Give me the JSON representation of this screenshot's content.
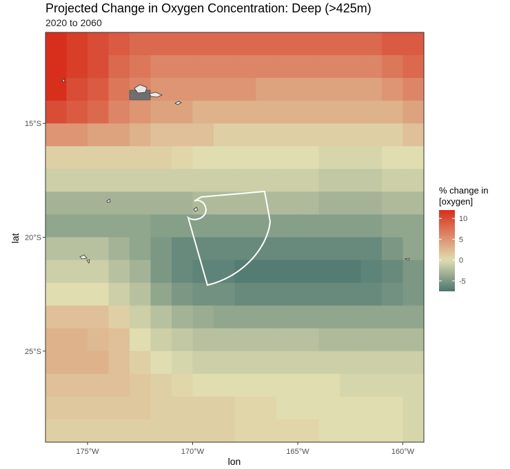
{
  "chart_data": {
    "type": "heatmap",
    "title": "Projected Change in Oxygen Concentration: Deep (>425m)",
    "subtitle": "2020 to 2060",
    "xlabel": "lon",
    "ylabel": "lat",
    "xlim": [
      -177.0,
      -159.0
    ],
    "ylim": [
      -29.0,
      -11.0
    ],
    "x_ticks": [
      {
        "value": -175,
        "label": "175°W"
      },
      {
        "value": -170,
        "label": "170°W"
      },
      {
        "value": -165,
        "label": "165°W"
      },
      {
        "value": -160,
        "label": "160°W"
      }
    ],
    "y_ticks": [
      {
        "value": -15,
        "label": "15°S"
      },
      {
        "value": -20,
        "label": "20°S"
      },
      {
        "value": -25,
        "label": "25°S"
      }
    ],
    "grid": true,
    "legend": {
      "title": "% change in\n[oxygen]",
      "position": "right",
      "ticks": [
        10,
        5,
        0,
        -5
      ],
      "range": [
        -7.5,
        12
      ],
      "colors": {
        "low": "#4a756f",
        "mid": "#e0ddb0",
        "high": "#d82f1d"
      }
    },
    "cell_size_deg": 1.0,
    "lon_centers": [
      -176.5,
      -175.5,
      -174.5,
      -173.5,
      -172.5,
      -171.5,
      -170.5,
      -169.5,
      -168.5,
      -167.5,
      -166.5,
      -165.5,
      -164.5,
      -163.5,
      -162.5,
      -161.5,
      -160.5,
      -159.5
    ],
    "lat_centers": [
      -11.5,
      -12.5,
      -13.5,
      -14.5,
      -15.5,
      -16.5,
      -17.5,
      -18.5,
      -19.5,
      -20.5,
      -21.5,
      -22.5,
      -23.5,
      -24.5,
      -25.5,
      -26.5,
      -27.5,
      -28.5
    ],
    "values": [
      [
        12,
        11,
        10,
        9,
        8,
        8,
        8,
        8,
        8,
        8,
        8,
        8,
        8,
        8,
        8,
        8,
        9,
        9
      ],
      [
        12,
        11,
        10,
        8,
        7,
        6,
        6,
        6,
        6,
        6,
        6,
        6,
        6,
        6,
        6,
        6,
        7,
        8
      ],
      [
        12,
        10,
        9,
        7,
        6,
        5,
        5,
        5,
        5,
        5,
        4,
        4,
        4,
        4,
        4,
        4,
        5,
        6
      ],
      [
        10,
        9,
        8,
        6,
        5,
        4,
        4,
        3,
        3,
        3,
        3,
        3,
        3,
        3,
        3,
        3,
        3,
        4
      ],
      [
        5,
        5,
        4,
        4,
        3,
        2,
        2,
        2,
        1,
        1,
        1,
        1,
        1,
        1,
        1,
        1,
        1,
        2
      ],
      [
        1,
        1,
        1,
        1,
        1,
        1,
        0.5,
        0,
        0,
        0,
        0,
        0,
        0,
        -0.5,
        -0.5,
        -0.5,
        0,
        0
      ],
      [
        -1,
        -1,
        -1,
        -1,
        -1,
        -1,
        -1,
        -1,
        -1,
        -1,
        -1,
        -1,
        -1,
        -1.5,
        -1.5,
        -1.5,
        -1,
        -1
      ],
      [
        -3,
        -3,
        -3,
        -3,
        -3,
        -3,
        -3,
        -2.5,
        -2.5,
        -2.5,
        -2.5,
        -2.5,
        -2.5,
        -3,
        -3,
        -3,
        -2.5,
        -2.5
      ],
      [
        -4,
        -4,
        -4,
        -4,
        -4,
        -4.5,
        -4.5,
        -4.5,
        -4.5,
        -4.5,
        -4.5,
        -4.5,
        -4.5,
        -4.5,
        -4.5,
        -4.5,
        -4,
        -4
      ],
      [
        -2,
        -2,
        -2,
        -3,
        -4,
        -5,
        -6,
        -6,
        -6,
        -6,
        -6,
        -6,
        -6,
        -6,
        -6,
        -6,
        -5,
        -4
      ],
      [
        -1,
        -1,
        -1,
        -2,
        -3,
        -5,
        -6,
        -6.5,
        -6.5,
        -7,
        -7,
        -7,
        -7,
        -7,
        -7,
        -6.5,
        -6,
        -5
      ],
      [
        0,
        0,
        0,
        -1,
        -2,
        -4,
        -5,
        -5.5,
        -5.5,
        -6,
        -6,
        -6,
        -6,
        -6,
        -6,
        -6,
        -5.5,
        -5
      ],
      [
        2,
        2,
        2,
        1,
        -1,
        -2,
        -3,
        -3.5,
        -4,
        -4,
        -4,
        -4,
        -4,
        -4,
        -4,
        -4,
        -4,
        -4
      ],
      [
        3,
        3,
        2.5,
        2,
        0,
        -1,
        -1.5,
        -2,
        -2,
        -2,
        -2,
        -2,
        -2,
        -2.5,
        -2.5,
        -2.5,
        -2.5,
        -2.5
      ],
      [
        3,
        3,
        3,
        2,
        1,
        0,
        -0.5,
        -1,
        -1,
        -1,
        -1,
        -1,
        -1,
        -1,
        -1,
        -1,
        -1,
        -1
      ],
      [
        2,
        2,
        2,
        2,
        1.5,
        1,
        0.5,
        0,
        0,
        0,
        0,
        0,
        0,
        0,
        -0.5,
        -0.5,
        -0.5,
        -0.5
      ],
      [
        1.5,
        1.5,
        1.5,
        1.5,
        1.5,
        1,
        1,
        1,
        1,
        0.5,
        0.5,
        0,
        0,
        0,
        0,
        0,
        0,
        -0.5
      ],
      [
        1,
        1,
        1,
        1,
        1,
        1,
        1,
        1,
        1,
        0.5,
        0.5,
        0.5,
        0.5,
        0,
        0,
        0,
        0,
        -0.5
      ]
    ],
    "overlays": {
      "region_outline_color": "#ffffff",
      "land_fill": "#e8e8e8",
      "land_stroke": "#333333"
    }
  }
}
